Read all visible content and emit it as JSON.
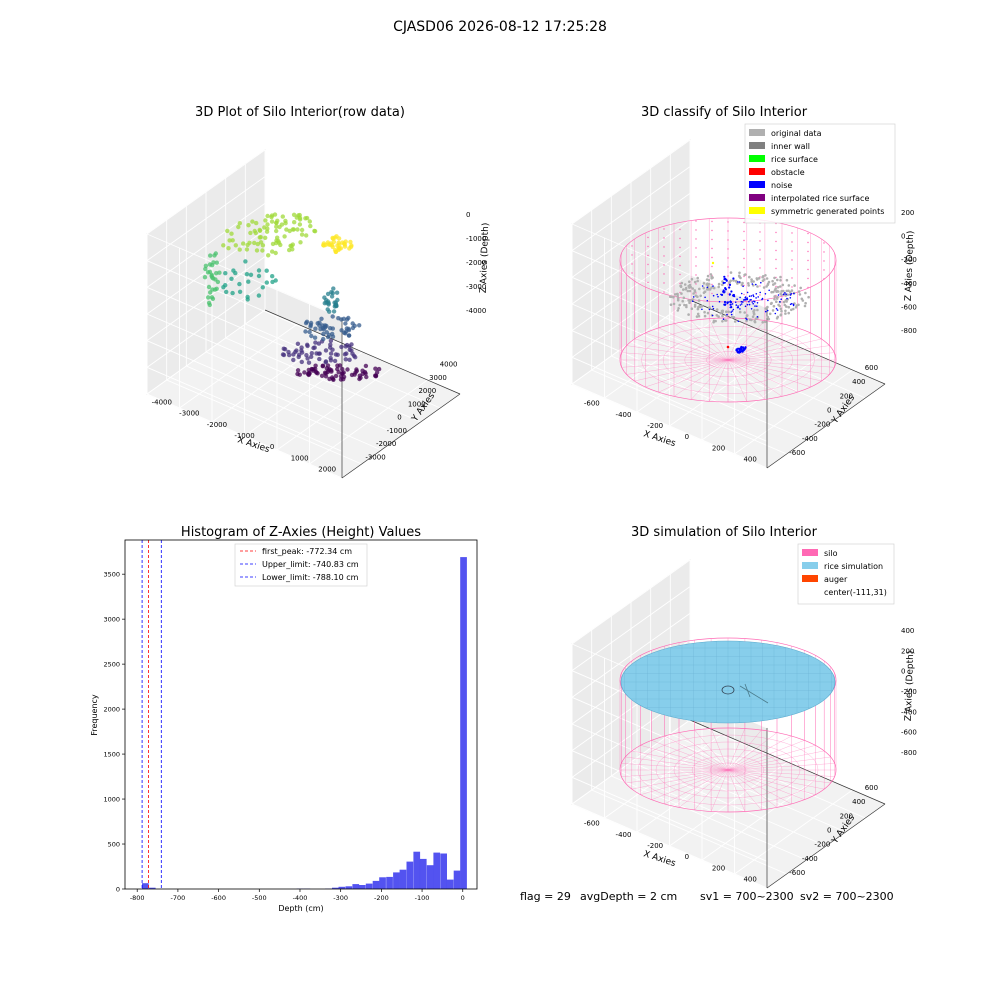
{
  "figure_title": "CJASD06 2026-08-12 17:25:28",
  "footer": {
    "flag": "flag = 29",
    "avg_depth": "avgDepth = 2 cm",
    "sv1": "sv1 = 700~2300",
    "sv2": "sv2 = 700~2300"
  },
  "colors": {
    "pane": "#ebebeb",
    "grid": "#d0d0d0",
    "silo": "#ff69b4",
    "rice": "#87ceeb",
    "hist": "#4040ee",
    "original": "#b0b0b0",
    "inner_wall": "#808080",
    "rice_surface": "#00ff00",
    "obstacle": "#ff0000",
    "noise": "#0000ff",
    "interpolated": "#800080",
    "symmetric": "#ffff00",
    "auger": "#ff4500"
  },
  "chart_data": [
    {
      "type": "scatter3d",
      "title": "3D Plot of Silo Interior(row data)",
      "xlabel": "X Axies",
      "ylabel": "Y Axies",
      "zlabel": "Z Axies (Depth)",
      "x_ticks": [
        "-4000",
        "-3000",
        "-2000",
        "-1000",
        "0",
        "1000",
        "2000"
      ],
      "y_ticks": [
        "-3000",
        "-2000",
        "-1000",
        "0",
        "1000",
        "2000",
        "3000",
        "4000"
      ],
      "z_ticks": [
        "-4000",
        "-3000",
        "-2000",
        "-1000",
        "0"
      ],
      "colormap": "viridis"
    },
    {
      "type": "scatter3d",
      "title": "3D classify of Silo Interior",
      "xlabel": "X Axies",
      "ylabel": "Y Axies",
      "zlabel": "Z Axies (Depth)",
      "x_ticks": [
        "-600",
        "-400",
        "-200",
        "0",
        "200",
        "400"
      ],
      "y_ticks": [
        "-600",
        "-400",
        "-200",
        "0",
        "200",
        "400",
        "600"
      ],
      "z_ticks": [
        "-800",
        "-600",
        "-400",
        "-200",
        "0",
        "200"
      ],
      "legend_position": "top-right",
      "legend": [
        {
          "label": "original data",
          "color": "#b0b0b0"
        },
        {
          "label": "inner wall",
          "color": "#808080"
        },
        {
          "label": "rice surface",
          "color": "#00ff00"
        },
        {
          "label": "obstacle",
          "color": "#ff0000"
        },
        {
          "label": "noise",
          "color": "#0000ff"
        },
        {
          "label": "interpolated rice surface",
          "color": "#800080"
        },
        {
          "label": "symmetric generated points",
          "color": "#ffff00"
        }
      ]
    },
    {
      "type": "bar",
      "title": "Histogram of Z-Axies (Height) Values",
      "xlabel": "Depth (cm)",
      "ylabel": "Frequency",
      "xlim": [
        -830,
        35
      ],
      "ylim": [
        0,
        3880
      ],
      "x_ticks": [
        -800,
        -700,
        -600,
        -500,
        -400,
        -300,
        -200,
        -100,
        0
      ],
      "y_ticks": [
        0,
        500,
        1000,
        1500,
        2000,
        2500,
        3000,
        3500
      ],
      "bin_width": 16.5,
      "bins": [
        {
          "x": -780,
          "v": 65
        },
        {
          "x": -763,
          "v": 15
        },
        {
          "x": -400,
          "v": 5
        },
        {
          "x": -383,
          "v": 5
        },
        {
          "x": -330,
          "v": 5
        },
        {
          "x": -313,
          "v": 15
        },
        {
          "x": -297,
          "v": 25
        },
        {
          "x": -280,
          "v": 30
        },
        {
          "x": -263,
          "v": 55
        },
        {
          "x": -247,
          "v": 45
        },
        {
          "x": -230,
          "v": 60
        },
        {
          "x": -213,
          "v": 90
        },
        {
          "x": -197,
          "v": 130
        },
        {
          "x": -180,
          "v": 135
        },
        {
          "x": -163,
          "v": 185
        },
        {
          "x": -147,
          "v": 215
        },
        {
          "x": -130,
          "v": 305
        },
        {
          "x": -113,
          "v": 415
        },
        {
          "x": -97,
          "v": 335
        },
        {
          "x": -80,
          "v": 265
        },
        {
          "x": -64,
          "v": 405
        },
        {
          "x": -47,
          "v": 395
        },
        {
          "x": -31,
          "v": 105
        },
        {
          "x": -14,
          "v": 205
        },
        {
          "x": 2,
          "v": 3690
        }
      ],
      "vlines": [
        {
          "label": "first_peak: -772.34 cm",
          "value": -772.34,
          "color": "#ff0000"
        },
        {
          "label": "Upper_limit: -740.83 cm",
          "value": -740.83,
          "color": "#0000ff"
        },
        {
          "label": "Lower_limit: -788.10 cm",
          "value": -788.1,
          "color": "#0000ff"
        }
      ],
      "legend_position": "top-center"
    },
    {
      "type": "surface3d",
      "title": "3D simulation of Silo Interior",
      "xlabel": "X Axies",
      "ylabel": "Y Axies",
      "zlabel": "Z Axies (Depth)",
      "x_ticks": [
        "-600",
        "-400",
        "-200",
        "0",
        "200",
        "400"
      ],
      "y_ticks": [
        "-600",
        "-400",
        "-200",
        "0",
        "200",
        "400",
        "600"
      ],
      "z_ticks": [
        "-800",
        "-600",
        "-400",
        "-200",
        "0",
        "200",
        "400"
      ],
      "legend_position": "top-right",
      "legend": [
        {
          "label": "silo",
          "color": "#ff69b4"
        },
        {
          "label": "rice simulation",
          "color": "#87ceeb"
        },
        {
          "label": "auger",
          "color": "#ff4500"
        },
        {
          "label": "center(-111,31)",
          "color": ""
        }
      ]
    }
  ]
}
